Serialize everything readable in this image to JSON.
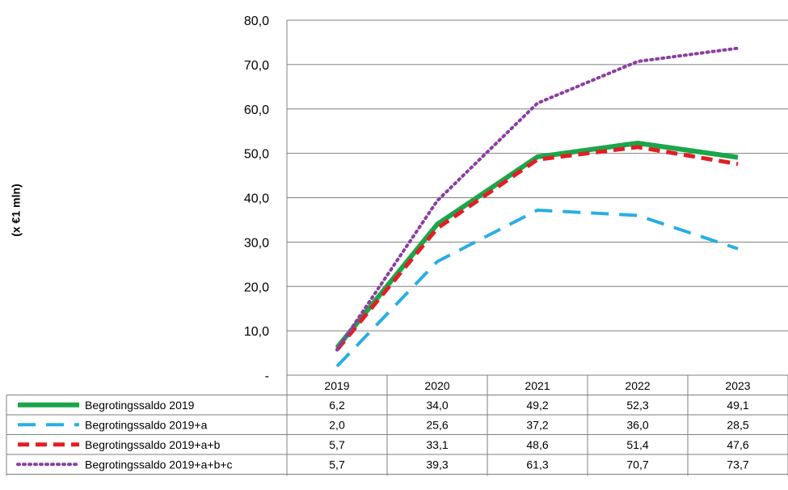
{
  "chart_data": {
    "type": "line",
    "ylabel": "(x €1 mln)",
    "ylim": [
      0,
      80
    ],
    "y_ticks": [
      "-",
      "10,0",
      "20,0",
      "30,0",
      "40,0",
      "50,0",
      "60,0",
      "70,0",
      "80,0"
    ],
    "categories": [
      "2019",
      "2020",
      "2021",
      "2022",
      "2023"
    ],
    "grid": true,
    "legend": "data-table-below",
    "series": [
      {
        "name": "Begrotingssaldo 2019",
        "values": [
          6.2,
          34.0,
          49.2,
          52.3,
          49.1
        ],
        "labels": [
          "6,2",
          "34,0",
          "49,2",
          "52,3",
          "49,1"
        ],
        "color": "#1aa64a",
        "style": "solid"
      },
      {
        "name": "Begrotingssaldo 2019+a",
        "values": [
          2.0,
          25.6,
          37.2,
          36.0,
          28.5
        ],
        "labels": [
          "2,0",
          "25,6",
          "37,2",
          "36,0",
          "28,5"
        ],
        "color": "#29aee3",
        "style": "long-dash"
      },
      {
        "name": "Begrotingssaldo 2019+a+b",
        "values": [
          5.7,
          33.1,
          48.6,
          51.4,
          47.6
        ],
        "labels": [
          "5,7",
          "33,1",
          "48,6",
          "51,4",
          "47,6"
        ],
        "color": "#e31e24",
        "style": "dash"
      },
      {
        "name": "Begrotingssaldo 2019+a+b+c",
        "values": [
          5.7,
          39.3,
          61.3,
          70.7,
          73.7
        ],
        "labels": [
          "5,7",
          "39,3",
          "61,3",
          "70,7",
          "73,7"
        ],
        "color": "#8a3fa0",
        "style": "dot"
      }
    ]
  }
}
